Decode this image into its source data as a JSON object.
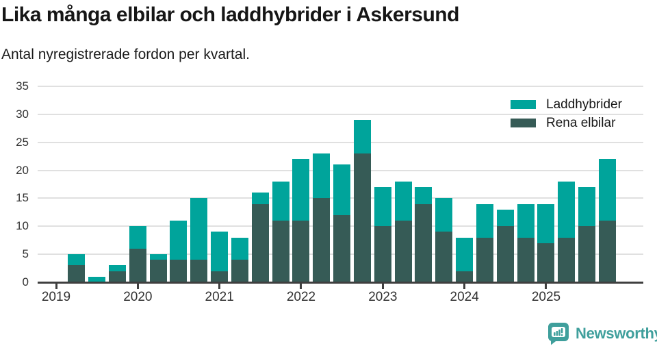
{
  "header": {
    "title": "Lika många elbilar och laddhybrider i Askersund",
    "subtitle": "Antal nyregistrerade fordon per kvartal."
  },
  "chart_data": {
    "type": "bar",
    "stacked": true,
    "title": "Lika många elbilar och laddhybrider i Askersund",
    "subtitle": "Antal nyregistrerade fordon per kvartal.",
    "x_unit": "quarter",
    "points_per_year": 4,
    "x_tick_labels": [
      "2019",
      "2020",
      "2021",
      "2022",
      "2023",
      "2024",
      "2025"
    ],
    "y_ticks": [
      0,
      5,
      10,
      15,
      20,
      25,
      30,
      35
    ],
    "ylim": [
      0,
      35
    ],
    "grid": "horizontal",
    "legend_position": "top-right",
    "series": [
      {
        "name": "Laddhybrider",
        "color": "#00a49b",
        "stack_order": "top",
        "values": [
          0,
          2,
          1,
          1,
          4,
          1,
          7,
          11,
          7,
          4,
          2,
          7,
          11,
          8,
          9,
          6,
          7,
          7,
          3,
          6,
          6,
          6,
          3,
          6,
          7,
          10,
          7,
          11
        ]
      },
      {
        "name": "Rena elbilar",
        "color": "#365b56",
        "stack_order": "bottom",
        "values": [
          0,
          3,
          0,
          2,
          6,
          4,
          4,
          4,
          2,
          4,
          14,
          11,
          11,
          15,
          12,
          23,
          10,
          11,
          14,
          9,
          2,
          8,
          10,
          8,
          7,
          8,
          10,
          11
        ]
      }
    ],
    "stacked_totals": [
      0,
      5,
      1,
      3,
      10,
      5,
      11,
      15,
      9,
      8,
      16,
      18,
      22,
      23,
      21,
      29,
      17,
      18,
      17,
      15,
      8,
      14,
      13,
      14,
      14,
      18,
      17,
      22
    ]
  },
  "branding": {
    "name": "Newsworthy",
    "color": "#3f9f9c",
    "icon": "newsworthy-bar-chart-bubble-icon"
  },
  "colors": {
    "background": "#ffffff",
    "grid": "#e0e0e0",
    "axis": "#3f3f3f",
    "title_text": "#161616",
    "tick_text": "#333333",
    "laddhybrider": "#00a49b",
    "rena_elbilar": "#365b56"
  }
}
